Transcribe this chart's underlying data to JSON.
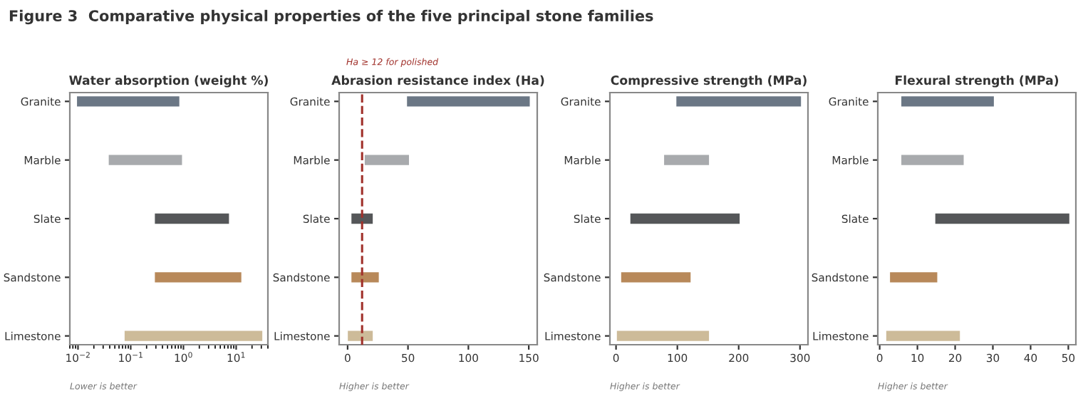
{
  "chart_data": [
    {
      "type": "other",
      "title": "Figure 3  Comparative physical properties of the five principal stone families"
    },
    {
      "type": "bar",
      "orientation": "horizontal",
      "title": "Water absorption (weight %)",
      "categories": [
        "Granite",
        "Marble",
        "Slate",
        "Sandstone",
        "Limestone"
      ],
      "base": [
        0.01,
        0.04,
        0.3,
        0.3,
        0.08
      ],
      "values": [
        0.79,
        0.86,
        6.7,
        11.7,
        29.92
      ],
      "colors": [
        "#6b7785",
        "#a8aaad",
        "#555759",
        "#b8895a",
        "#cdbb99"
      ],
      "log": "x",
      "xlim": [
        0.007,
        40
      ],
      "xticks": [
        {
          "value": 0.01,
          "label": "10$^{−2}$"
        },
        {
          "value": 0.1,
          "label": "10$^{−1}$"
        },
        {
          "value": 1,
          "label": "10$^{0}$"
        },
        {
          "value": 10,
          "label": "10$^{1}$"
        }
      ],
      "annotations": [
        "Lower is better"
      ]
    },
    {
      "type": "bar",
      "orientation": "horizontal",
      "title": "Abrasion resistance index (Ha)",
      "categories": [
        "Granite",
        "Marble",
        "Slate",
        "Sandstone",
        "Limestone"
      ],
      "base": [
        50,
        15,
        4,
        4,
        1
      ],
      "values": [
        100,
        35,
        16,
        21,
        19
      ],
      "colors": [
        "#6b7785",
        "#a8aaad",
        "#555759",
        "#b8895a",
        "#cdbb99"
      ],
      "xlim": [
        -7,
        157
      ],
      "xticks": [
        0,
        50,
        100,
        150
      ],
      "ref_lines": [
        {
          "axis": "x",
          "value": 12,
          "label": "Ha ≥ 12 for polished",
          "color": "#a0302a",
          "line_style": "dashed"
        }
      ],
      "annotations": [
        "Higher is better"
      ]
    },
    {
      "type": "bar",
      "orientation": "horizontal",
      "title": "Compressive strength (MPa)",
      "categories": [
        "Granite",
        "Marble",
        "Slate",
        "Sandstone",
        "Limestone"
      ],
      "base": [
        100,
        80,
        25,
        10,
        3
      ],
      "values": [
        200,
        70,
        175,
        110,
        147
      ],
      "colors": [
        "#6b7785",
        "#a8aaad",
        "#555759",
        "#b8895a",
        "#cdbb99"
      ],
      "xlim": [
        -10,
        313
      ],
      "xticks": [
        0,
        100,
        200,
        300
      ],
      "annotations": [
        "Higher is better"
      ]
    },
    {
      "type": "bar",
      "orientation": "horizontal",
      "title": "Flexural strength (MPa)",
      "categories": [
        "Granite",
        "Marble",
        "Slate",
        "Sandstone",
        "Limestone"
      ],
      "base": [
        6,
        6,
        15,
        3,
        2
      ],
      "values": [
        24,
        16,
        35,
        12,
        19
      ],
      "colors": [
        "#6b7785",
        "#a8aaad",
        "#555759",
        "#b8895a",
        "#cdbb99"
      ],
      "xlim": [
        -0.5,
        52
      ],
      "xticks": [
        0,
        10,
        20,
        30,
        40,
        50
      ],
      "annotations": [
        "Higher is better"
      ]
    }
  ]
}
